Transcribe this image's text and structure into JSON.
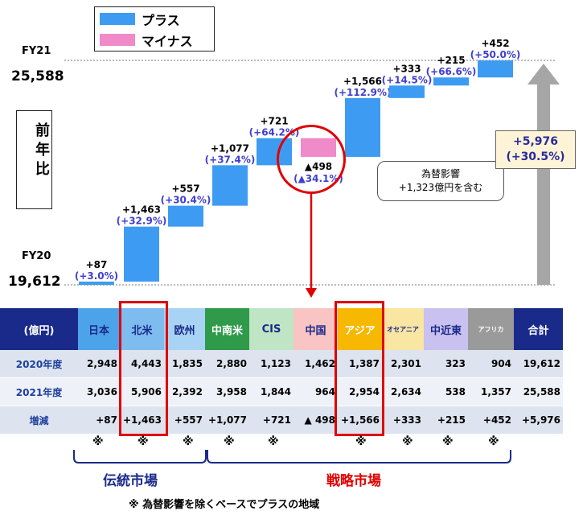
{
  "legend": {
    "plus": "プラス",
    "minus": "マイナス"
  },
  "fy21": {
    "label": "FY21",
    "value": "25,588"
  },
  "fy20": {
    "label": "FY20",
    "value": "19,612"
  },
  "yoy_label": "前年比",
  "total_box": {
    "value": "+5,976",
    "pct": "(+30.5%)"
  },
  "fx_note": {
    "line1": "為替影響",
    "line2": "+1,323億円を含む"
  },
  "colors": {
    "plus": "#3d9cf2",
    "minus": "#f08ac8",
    "header_navy": "#1a2a8a",
    "highlight": "#e00000",
    "arrow": "#a6a6a6"
  },
  "chart_data": {
    "type": "waterfall",
    "start": 19612,
    "end": 25588,
    "categories": [
      "日本",
      "北米",
      "欧州",
      "中南米",
      "CIS",
      "中国",
      "アジア",
      "オセアニア",
      "中近東",
      "アフリカ"
    ],
    "values": [
      87,
      1463,
      557,
      1077,
      721,
      -498,
      1566,
      333,
      215,
      452
    ],
    "labels": [
      "+87",
      "+1,463",
      "+557",
      "+1,077",
      "+721",
      "▲498",
      "+1,566",
      "+333",
      "+215",
      "+452"
    ],
    "pct_labels": [
      "(+3.0%)",
      "(+32.9%)",
      "(+30.4%)",
      "(+37.4%)",
      "(+64.2%)",
      "(▲34.1%)",
      "(+112.9%)",
      "(+14.5%)",
      "(+66.6%)",
      "(+50.0%)"
    ]
  },
  "table": {
    "corner": "(億円)",
    "headers": [
      {
        "label": "日本",
        "bg": "#4da3ea",
        "fg": "#1a2a8a"
      },
      {
        "label": "北米",
        "bg": "#7ebcf0",
        "fg": "#1a2a8a"
      },
      {
        "label": "欧州",
        "bg": "#a9d3f5",
        "fg": "#1a2a8a"
      },
      {
        "label": "中南米",
        "bg": "#2f9a4a",
        "fg": "#ffffff"
      },
      {
        "label": "CIS",
        "bg": "#bfe5c4",
        "fg": "#1a2a8a"
      },
      {
        "label": "中国",
        "bg": "#f9c4c4",
        "fg": "#1a2a8a"
      },
      {
        "label": "アジア",
        "bg": "#f6b800",
        "fg": "#ffffff"
      },
      {
        "label": "オセアニア",
        "bg": "#f8e6a2",
        "fg": "#1a2a8a"
      },
      {
        "label": "中近東",
        "bg": "#c9c1ef",
        "fg": "#1a2a8a"
      },
      {
        "label": "アフリカ",
        "bg": "#9a9a9a",
        "fg": "#ffffff"
      },
      {
        "label": "合計",
        "bg": "#1a2a8a",
        "fg": "#ffffff"
      }
    ],
    "rows": [
      {
        "label": "2020年度",
        "values": [
          "2,948",
          "4,443",
          "1,835",
          "2,880",
          "1,123",
          "1,462",
          "1,387",
          "2,301",
          "323",
          "904",
          "19,612"
        ]
      },
      {
        "label": "2021年度",
        "values": [
          "3,036",
          "5,906",
          "2,392",
          "3,958",
          "1,844",
          "964",
          "2,954",
          "2,634",
          "538",
          "1,357",
          "25,588"
        ]
      },
      {
        "label": "増減",
        "values": [
          "+87",
          "+1,463",
          "+557",
          "+1,077",
          "+721",
          "▲ 498",
          "+1,566",
          "+333",
          "+215",
          "+452",
          "+5,976"
        ]
      }
    ]
  },
  "note_mark": "※",
  "groups": {
    "traditional": "伝統市場",
    "strategic": "戦略市場"
  },
  "footnote": "※ 為替影響を除くベースでプラスの地域"
}
